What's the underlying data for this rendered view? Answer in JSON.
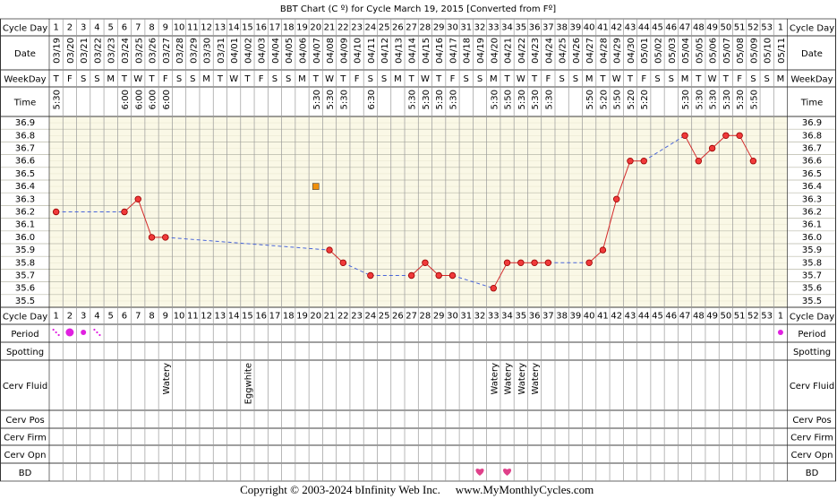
{
  "title": "BBT Chart (C º) for Cycle March 19, 2015  [Converted from Fº]",
  "row_labels": {
    "cycle_day": "Cycle Day",
    "date": "Date",
    "weekday": "WeekDay",
    "time": "Time",
    "period": "Period",
    "spotting": "Spotting",
    "cerv_fluid": "Cerv Fluid",
    "cerv_pos": "Cerv Pos",
    "cerv_firm": "Cerv Firm",
    "cerv_opn": "Cerv Opn",
    "bd": "BD"
  },
  "cycle_days": [
    1,
    2,
    3,
    4,
    5,
    6,
    7,
    8,
    9,
    10,
    11,
    12,
    13,
    14,
    15,
    16,
    17,
    18,
    19,
    20,
    21,
    22,
    23,
    24,
    25,
    26,
    27,
    28,
    29,
    30,
    31,
    32,
    33,
    34,
    35,
    36,
    37,
    38,
    39,
    40,
    41,
    42,
    43,
    44,
    45,
    46,
    47,
    48,
    49,
    50,
    51,
    52,
    53,
    1
  ],
  "dates": [
    "03/19",
    "03/20",
    "03/21",
    "03/22",
    "03/23",
    "03/24",
    "03/25",
    "03/26",
    "03/27",
    "03/28",
    "03/29",
    "03/30",
    "03/31",
    "04/01",
    "04/02",
    "04/03",
    "04/04",
    "04/05",
    "04/06",
    "04/07",
    "04/08",
    "04/09",
    "04/10",
    "04/11",
    "04/12",
    "04/13",
    "04/14",
    "04/15",
    "04/16",
    "04/17",
    "04/18",
    "04/19",
    "04/20",
    "04/21",
    "04/22",
    "04/23",
    "04/24",
    "04/25",
    "04/26",
    "04/27",
    "04/28",
    "04/29",
    "04/30",
    "05/01",
    "05/02",
    "05/03",
    "05/04",
    "05/05",
    "05/06",
    "05/07",
    "05/08",
    "05/09",
    "05/10",
    "05/11"
  ],
  "weekdays": [
    "T",
    "F",
    "S",
    "S",
    "M",
    "T",
    "W",
    "T",
    "F",
    "S",
    "S",
    "M",
    "T",
    "W",
    "T",
    "F",
    "S",
    "S",
    "M",
    "T",
    "W",
    "T",
    "F",
    "S",
    "S",
    "M",
    "T",
    "W",
    "T",
    "F",
    "S",
    "S",
    "M",
    "T",
    "W",
    "T",
    "F",
    "S",
    "S",
    "M",
    "T",
    "W",
    "T",
    "F",
    "S",
    "S",
    "M",
    "T",
    "W",
    "T",
    "F",
    "S",
    "S",
    "M"
  ],
  "times": [
    "5:30",
    null,
    null,
    null,
    null,
    "6:00",
    "6:00",
    "6:00",
    "6:00",
    null,
    null,
    null,
    null,
    null,
    null,
    null,
    null,
    null,
    null,
    "5:30",
    "5:30",
    "5:30",
    null,
    "6:30",
    null,
    null,
    "5:30",
    "5:30",
    "5:30",
    "5:30",
    null,
    null,
    "5:30",
    "5:50",
    "5:30",
    "5:30",
    "5:30",
    null,
    null,
    "5:50",
    "5:20",
    "5:50",
    "5:20",
    "5:20",
    null,
    null,
    "5:30",
    "5:30",
    "5:30",
    "5:30",
    "5:30",
    "5:50",
    null,
    null
  ],
  "chart_data": {
    "type": "line",
    "color": "#d42a2a",
    "gap_color": "#4a66d8",
    "discarded_color": "#f0900a",
    "grid": true,
    "ylim": [
      35.45,
      36.95
    ],
    "yticks": [
      36.9,
      36.8,
      36.7,
      36.6,
      36.5,
      36.4,
      36.3,
      36.2,
      36.1,
      {
        "value": 36.0,
        "label": "36.0"
      },
      35.9,
      35.8,
      35.7,
      35.6,
      35.5
    ],
    "values": [
      36.2,
      null,
      null,
      null,
      null,
      36.2,
      36.3,
      36.0,
      36.0,
      null,
      null,
      null,
      null,
      null,
      null,
      null,
      null,
      null,
      null,
      null,
      35.9,
      35.8,
      null,
      35.7,
      null,
      null,
      35.7,
      35.8,
      35.7,
      35.7,
      null,
      null,
      35.6,
      35.8,
      35.8,
      35.8,
      35.8,
      null,
      null,
      35.8,
      35.9,
      36.3,
      36.6,
      36.6,
      null,
      null,
      36.8,
      36.6,
      36.7,
      36.8,
      36.8,
      36.6,
      null,
      null
    ],
    "discarded": [
      null,
      null,
      null,
      null,
      null,
      null,
      null,
      null,
      null,
      null,
      null,
      null,
      null,
      null,
      null,
      null,
      null,
      null,
      null,
      36.4,
      null,
      null,
      null,
      null,
      null,
      null,
      null,
      null,
      null,
      null,
      null,
      null,
      null,
      null,
      null,
      null,
      null,
      null,
      null,
      null,
      null,
      null,
      null,
      null,
      null,
      null,
      null,
      null,
      null,
      null,
      null,
      null,
      null,
      null
    ]
  },
  "period": [
    1,
    3,
    2,
    1,
    null,
    null,
    null,
    null,
    null,
    null,
    null,
    null,
    null,
    null,
    null,
    null,
    null,
    null,
    null,
    null,
    null,
    null,
    null,
    null,
    null,
    null,
    null,
    null,
    null,
    null,
    null,
    null,
    null,
    null,
    null,
    null,
    null,
    null,
    null,
    null,
    null,
    null,
    null,
    null,
    null,
    null,
    null,
    null,
    null,
    null,
    null,
    null,
    null,
    2
  ],
  "period_color": "#e020e0",
  "cerv_fluid": [
    null,
    null,
    null,
    null,
    null,
    null,
    null,
    null,
    "Watery",
    null,
    null,
    null,
    null,
    null,
    "Eggwhite",
    null,
    null,
    null,
    null,
    null,
    null,
    null,
    null,
    null,
    null,
    null,
    null,
    null,
    null,
    null,
    null,
    null,
    "Watery",
    "Watery",
    "Watery",
    "Watery",
    null,
    null,
    null,
    null,
    null,
    null,
    null,
    null,
    null,
    null,
    null,
    null,
    null,
    null,
    null,
    null,
    null,
    null
  ],
  "bd": [
    null,
    null,
    null,
    null,
    null,
    null,
    null,
    null,
    null,
    null,
    null,
    null,
    null,
    null,
    null,
    null,
    null,
    null,
    null,
    null,
    null,
    null,
    null,
    null,
    null,
    null,
    null,
    null,
    null,
    null,
    null,
    true,
    null,
    true,
    null,
    null,
    null,
    null,
    null,
    null,
    null,
    null,
    null,
    null,
    null,
    null,
    null,
    null,
    null,
    null,
    null,
    null,
    null,
    null
  ],
  "bd_color": "#e0408a",
  "footer": {
    "copyright": "Copyright © 2003-2024 bInfinity Web Inc.",
    "site": "www.MyMonthlyCycles.com"
  }
}
